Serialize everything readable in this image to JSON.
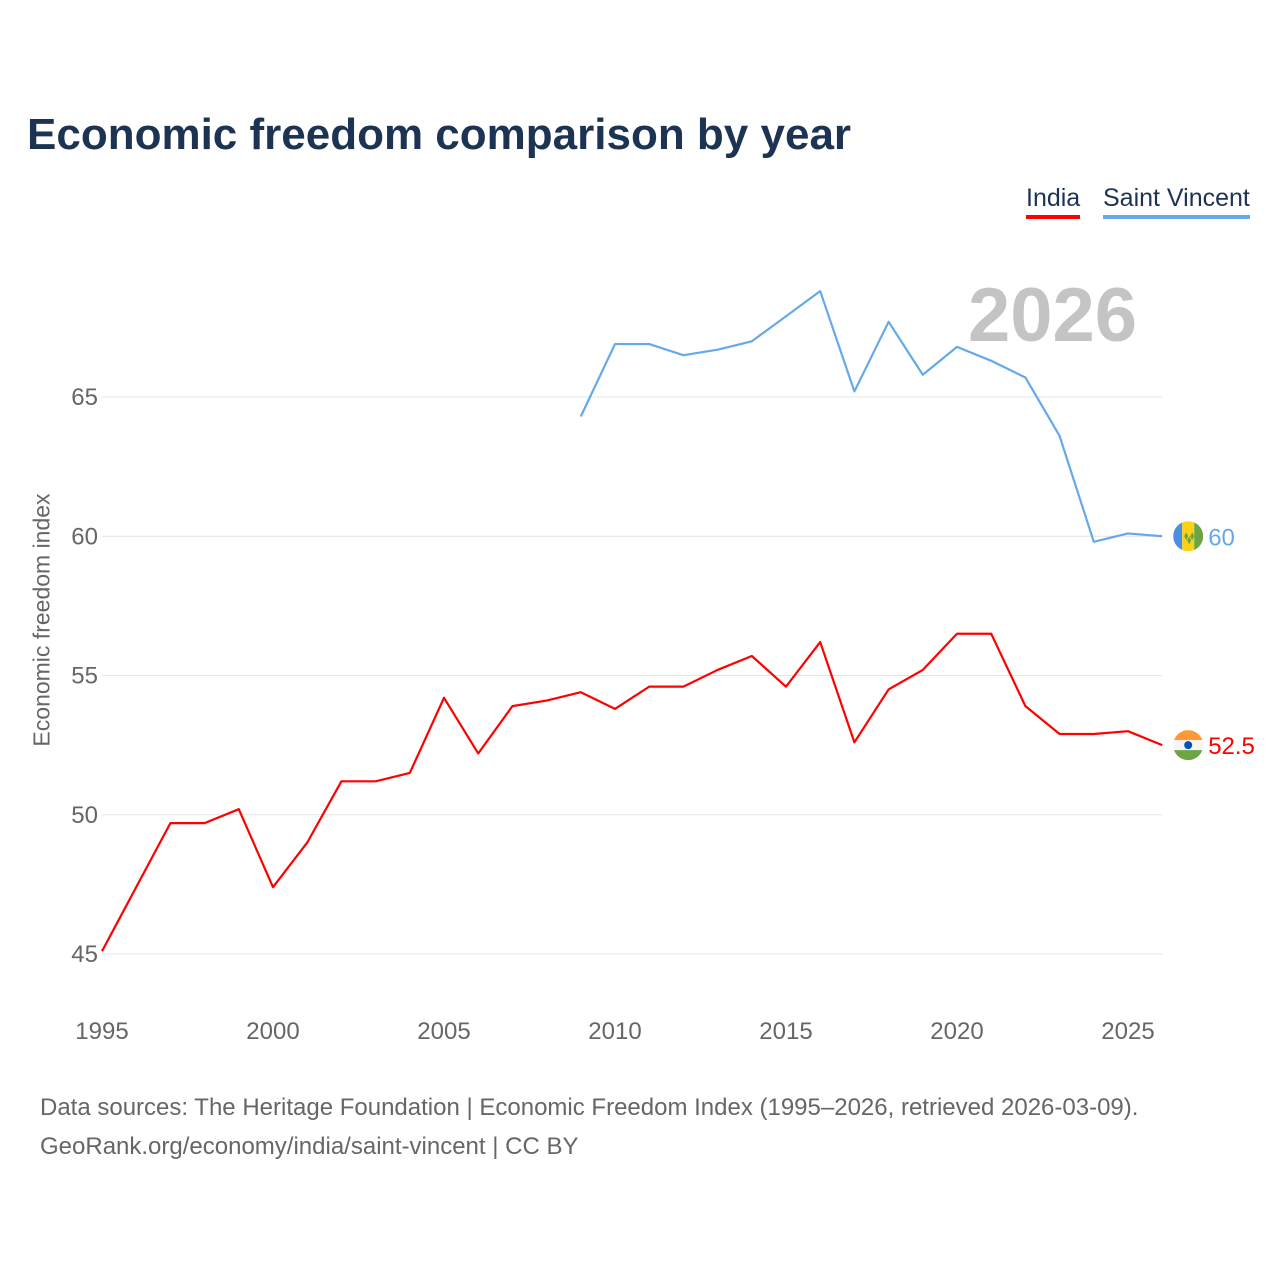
{
  "title": "Economic freedom comparison by year",
  "current_year": "2026",
  "source_line1": "Data sources: The Heritage Foundation | Economic Freedom Index (1995–2026, retrieved 2026-03-09).",
  "source_line2": "GeoRank.org/economy/india/saint-vincent | CC BY",
  "chart_data": {
    "type": "line",
    "title": "Economic freedom comparison by year",
    "xlabel": "",
    "ylabel": "Economic freedom index",
    "xlim": [
      1995,
      2026
    ],
    "ylim": [
      43,
      71
    ],
    "xticks": [
      1995,
      2000,
      2005,
      2010,
      2015,
      2020,
      2025
    ],
    "yticks": [
      45,
      50,
      55,
      60,
      65
    ],
    "grid": "horizontal",
    "legend": "top-right",
    "series": [
      {
        "name": "India",
        "color": "#ff0000",
        "end_label": "52.5",
        "x": [
          1995,
          1996,
          1997,
          1998,
          1999,
          2000,
          2001,
          2002,
          2003,
          2004,
          2005,
          2006,
          2007,
          2008,
          2009,
          2010,
          2011,
          2012,
          2013,
          2014,
          2015,
          2016,
          2017,
          2018,
          2019,
          2020,
          2021,
          2022,
          2023,
          2024,
          2025,
          2026
        ],
        "y": [
          45.1,
          47.4,
          49.7,
          49.7,
          50.2,
          47.4,
          49.0,
          51.2,
          51.2,
          51.5,
          54.2,
          52.2,
          53.9,
          54.1,
          54.4,
          53.8,
          54.6,
          54.6,
          55.2,
          55.7,
          54.6,
          56.2,
          52.6,
          54.5,
          55.2,
          56.5,
          56.5,
          53.9,
          52.9,
          52.9,
          53.0,
          52.5
        ]
      },
      {
        "name": "Saint Vincent",
        "color": "#66a9ea",
        "end_label": "60",
        "x": [
          2009,
          2010,
          2011,
          2012,
          2013,
          2014,
          2015,
          2016,
          2017,
          2018,
          2019,
          2020,
          2021,
          2022,
          2023,
          2024,
          2025,
          2026
        ],
        "y": [
          64.3,
          66.9,
          66.9,
          66.5,
          66.7,
          67.0,
          67.9,
          68.8,
          65.2,
          67.7,
          65.8,
          66.8,
          66.3,
          65.7,
          63.6,
          59.8,
          60.1,
          60.0
        ]
      }
    ]
  }
}
